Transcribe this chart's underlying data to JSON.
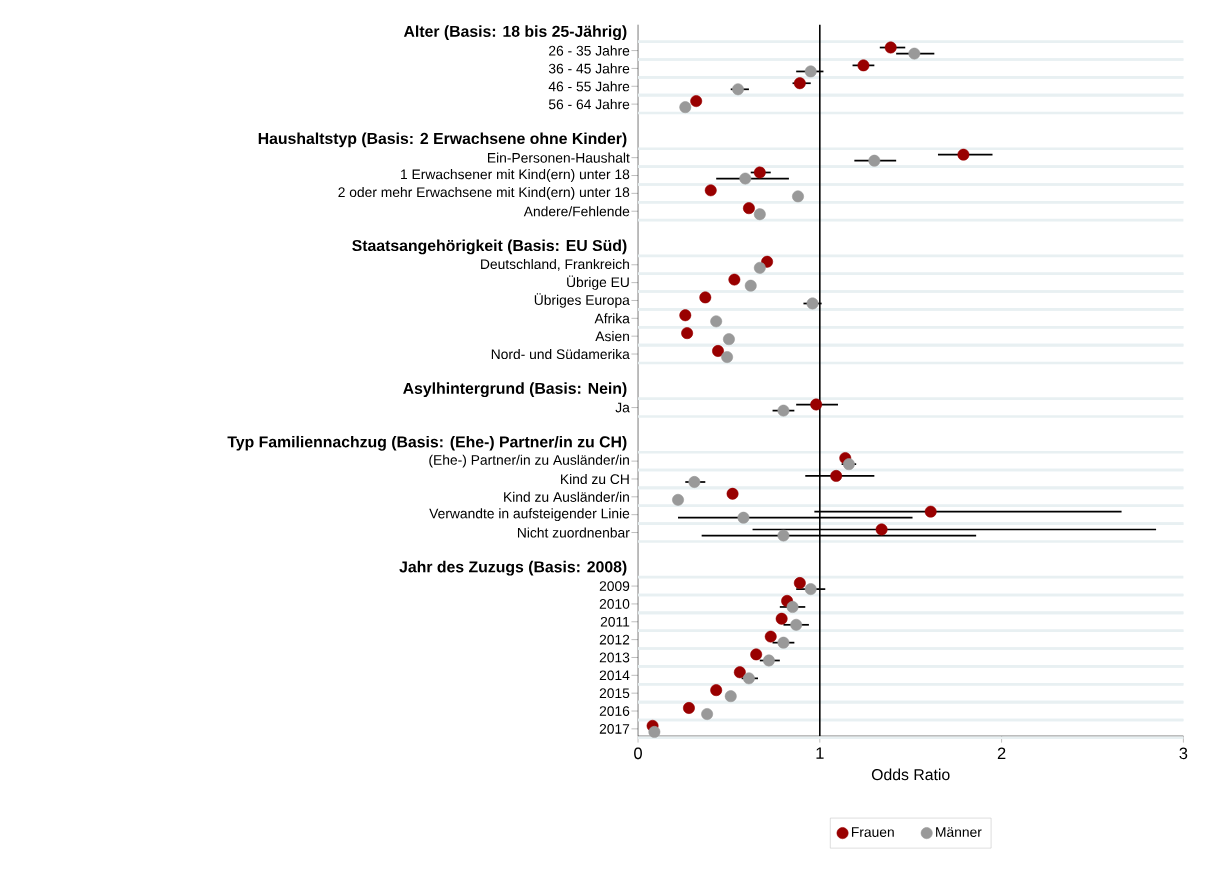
{
  "chart_data": {
    "type": "scatter",
    "orientation": "horizontal",
    "xlabel": "Odds Ratio",
    "categories": [
      "Alter (Basis: 18 bis 25-Jährig)",
      "26 - 35 Jahre",
      "36 - 45 Jahre",
      "46 - 55 Jahre",
      "56 - 64 Jahre",
      null,
      "Haushaltstyp (Basis: 2 Erwachsene ohne Kinder)",
      "Ein-Personen-Haushalt",
      "1 Erwachsener mit Kind(ern) unter 18",
      "2 oder mehr Erwachsene mit Kind(ern) unter 18",
      "Andere/Fehlende",
      null,
      "Staatsangehörigkeit (Basis: EU Süd)",
      "Deutschland, Frankreich",
      "Übrige EU",
      "Übriges Europa",
      "Afrika",
      "Asien",
      "Nord- und Südamerika",
      null,
      "Asylhintergrund (Basis: Nein)",
      "Ja",
      null,
      "Typ Familiennachzug (Basis: (Ehe-) Partner/in zu CH)",
      "(Ehe-) Partner/in zu Ausländer/in",
      "Kind zu CH",
      "Kind zu Ausländer/in",
      "Verwandte in aufsteigender Linie",
      "Nicht zuordnenbar",
      null,
      "Jahr des Zuzugs (Basis: 2008)",
      "2009",
      "2010",
      "2011",
      "2012",
      "2013",
      "2014",
      "2015",
      "2016",
      "2017"
    ],
    "series": [
      {
        "name": "Frauen",
        "color": "#990000",
        "values": [
          null,
          1.39,
          1.24,
          0.89,
          0.32,
          null,
          null,
          1.79,
          0.67,
          0.4,
          0.61,
          null,
          null,
          0.71,
          0.53,
          0.37,
          0.26,
          0.27,
          0.44,
          null,
          null,
          0.98,
          null,
          null,
          1.14,
          1.09,
          0.52,
          1.61,
          1.34,
          null,
          null,
          0.89,
          0.82,
          0.79,
          0.73,
          0.65,
          0.56,
          0.43,
          0.28,
          0.08
        ],
        "errors": [
          null,
          [
            1.33,
            1.47
          ],
          [
            1.18,
            1.3
          ],
          [
            0.85,
            0.95
          ],
          null,
          null,
          null,
          [
            1.65,
            1.95
          ],
          [
            0.62,
            0.73
          ],
          null,
          null,
          null,
          null,
          null,
          null,
          null,
          null,
          null,
          null,
          null,
          null,
          [
            0.87,
            1.1
          ],
          null,
          null,
          null,
          [
            0.92,
            1.3
          ],
          null,
          [
            0.97,
            2.66
          ],
          [
            0.63,
            2.85
          ],
          null,
          null,
          null,
          null,
          null,
          null,
          null,
          null,
          null,
          null,
          null
        ]
      },
      {
        "name": "Männer",
        "color": "#999999",
        "values": [
          null,
          1.52,
          0.95,
          0.55,
          0.26,
          null,
          null,
          1.3,
          0.59,
          0.88,
          0.67,
          null,
          null,
          0.67,
          0.62,
          0.96,
          0.43,
          0.5,
          0.49,
          null,
          null,
          0.8,
          null,
          null,
          1.16,
          0.31,
          0.22,
          0.58,
          0.8,
          null,
          null,
          0.95,
          0.85,
          0.87,
          0.8,
          0.72,
          0.61,
          0.51,
          0.38,
          0.09
        ],
        "errors": [
          null,
          [
            1.42,
            1.63
          ],
          [
            0.87,
            1.02
          ],
          [
            0.51,
            0.61
          ],
          null,
          null,
          null,
          [
            1.19,
            1.42
          ],
          [
            0.43,
            0.83
          ],
          null,
          null,
          null,
          null,
          null,
          null,
          [
            0.91,
            1.01
          ],
          null,
          null,
          null,
          null,
          null,
          [
            0.74,
            0.86
          ],
          null,
          null,
          [
            1.12,
            1.2
          ],
          [
            0.26,
            0.37
          ],
          null,
          [
            0.22,
            1.51
          ],
          [
            0.35,
            1.86
          ],
          null,
          null,
          [
            0.87,
            1.03
          ],
          [
            0.78,
            0.92
          ],
          [
            0.8,
            0.94
          ],
          [
            0.74,
            0.86
          ],
          [
            0.67,
            0.78
          ],
          [
            0.57,
            0.66
          ],
          null,
          null,
          null
        ]
      }
    ],
    "xlim": [
      0,
      3
    ],
    "xticks": [
      0,
      1,
      2,
      3
    ],
    "ref_lines": [
      {
        "axis": "x",
        "value": 1,
        "color": "#000000"
      }
    ],
    "grid": "y",
    "legend": "bottom"
  }
}
